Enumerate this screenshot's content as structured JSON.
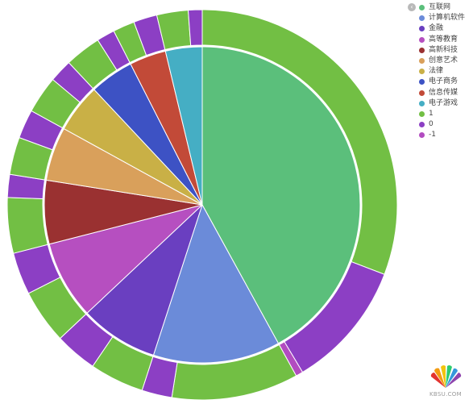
{
  "chart_data": {
    "type": "pie",
    "subtype": "nested-donut",
    "title": "",
    "inner": {
      "slices": [
        {
          "label": "互联网",
          "value": 42.0,
          "color": "#5bbf7b"
        },
        {
          "label": "计算机软件",
          "value": 13.0,
          "color": "#6b8bd9"
        },
        {
          "label": "金融",
          "value": 8.0,
          "color": "#6a3fc0"
        },
        {
          "label": "高等教育",
          "value": 8.0,
          "color": "#b64fc0"
        },
        {
          "label": "高新科技",
          "value": 6.5,
          "color": "#9a3131"
        },
        {
          "label": "创意艺术",
          "value": 5.5,
          "color": "#d9a05b"
        },
        {
          "label": "法律",
          "value": 5.0,
          "color": "#c9b046"
        },
        {
          "label": "电子商务",
          "value": 4.5,
          "color": "#3d52c4"
        },
        {
          "label": "信息传媒",
          "value": 3.75,
          "color": "#c24a38"
        },
        {
          "label": "电子游戏",
          "value": 3.75,
          "color": "#45aec4"
        }
      ]
    },
    "outer": {
      "slices": [
        {
          "label": "1",
          "value": 30.8
        },
        {
          "label": "0",
          "value": 10.6
        },
        {
          "label": "-1",
          "value": 0.6
        },
        {
          "label": "1",
          "value": 10.5
        },
        {
          "label": "0",
          "value": 2.5
        },
        {
          "label": "1",
          "value": 4.5
        },
        {
          "label": "0",
          "value": 3.5
        },
        {
          "label": "1",
          "value": 4.5
        },
        {
          "label": "0",
          "value": 3.5
        },
        {
          "label": "1",
          "value": 4.6
        },
        {
          "label": "0",
          "value": 1.9
        },
        {
          "label": "1",
          "value": 3.1
        },
        {
          "label": "0",
          "value": 2.4
        },
        {
          "label": "1",
          "value": 3.1
        },
        {
          "label": "0",
          "value": 1.9
        },
        {
          "label": "1",
          "value": 3.0
        },
        {
          "label": "0",
          "value": 1.5
        },
        {
          "label": "1",
          "value": 1.8
        },
        {
          "label": "0",
          "value": 1.95
        },
        {
          "label": "1",
          "value": 2.6
        },
        {
          "label": "0",
          "value": 1.15
        }
      ]
    },
    "outer_colors": {
      "1": "#72bf44",
      "0": "#8c3fc4",
      "-1": "#b24cc0"
    }
  },
  "legend": {
    "toggle_icon": "chevron-left-icon",
    "items": [
      {
        "label": "互联网",
        "color": "#5bbf7b"
      },
      {
        "label": "计算机软件",
        "color": "#6b8bd9"
      },
      {
        "label": "金融",
        "color": "#6a3fc0"
      },
      {
        "label": "高等教育",
        "color": "#b64fc0"
      },
      {
        "label": "高新科技",
        "color": "#9a3131"
      },
      {
        "label": "创意艺术",
        "color": "#d9a05b"
      },
      {
        "label": "法律",
        "color": "#c9b046"
      },
      {
        "label": "电子商务",
        "color": "#3d52c4"
      },
      {
        "label": "信息传媒",
        "color": "#c24a38"
      },
      {
        "label": "电子游戏",
        "color": "#45aec4"
      },
      {
        "label": "1",
        "color": "#72bf44"
      },
      {
        "label": "0",
        "color": "#8c3fc4"
      },
      {
        "label": "-1",
        "color": "#b24cc0"
      }
    ]
  },
  "watermark": {
    "text": "KBSU.COM"
  }
}
